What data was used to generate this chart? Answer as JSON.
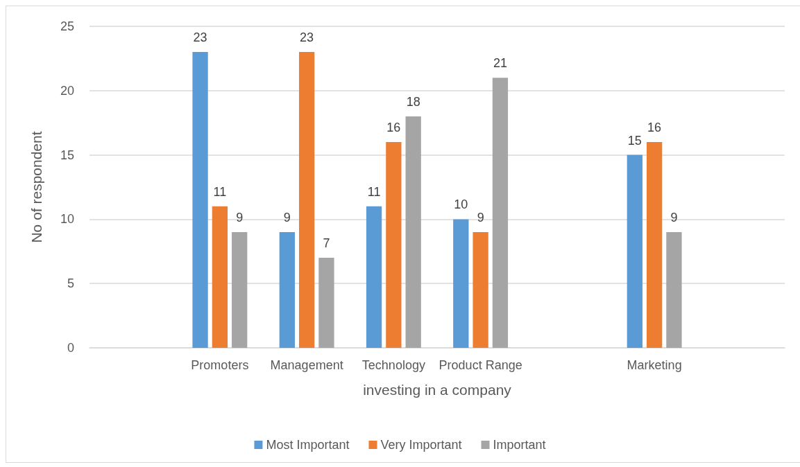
{
  "chart_data": {
    "type": "bar",
    "xlabel": "investing in a company",
    "ylabel": "No of respondent",
    "categories": [
      null,
      "Promoters",
      "Management",
      "Technology",
      "Product Range",
      null,
      "Marketing",
      null
    ],
    "series": [
      {
        "name": "Most Important",
        "color": "#5b9bd5",
        "values": [
          null,
          23,
          9,
          11,
          10,
          null,
          15,
          null
        ]
      },
      {
        "name": "Very Important",
        "color": "#ed7d31",
        "values": [
          null,
          11,
          23,
          16,
          9,
          null,
          16,
          null
        ]
      },
      {
        "name": "Important",
        "color": "#a5a5a5",
        "values": [
          null,
          9,
          7,
          18,
          21,
          null,
          9,
          null
        ]
      }
    ],
    "ylim": [
      0,
      25
    ],
    "yticks": [
      0,
      5,
      10,
      15,
      20,
      25
    ],
    "grid": "y",
    "legend": "bottom",
    "data_labels": true
  }
}
